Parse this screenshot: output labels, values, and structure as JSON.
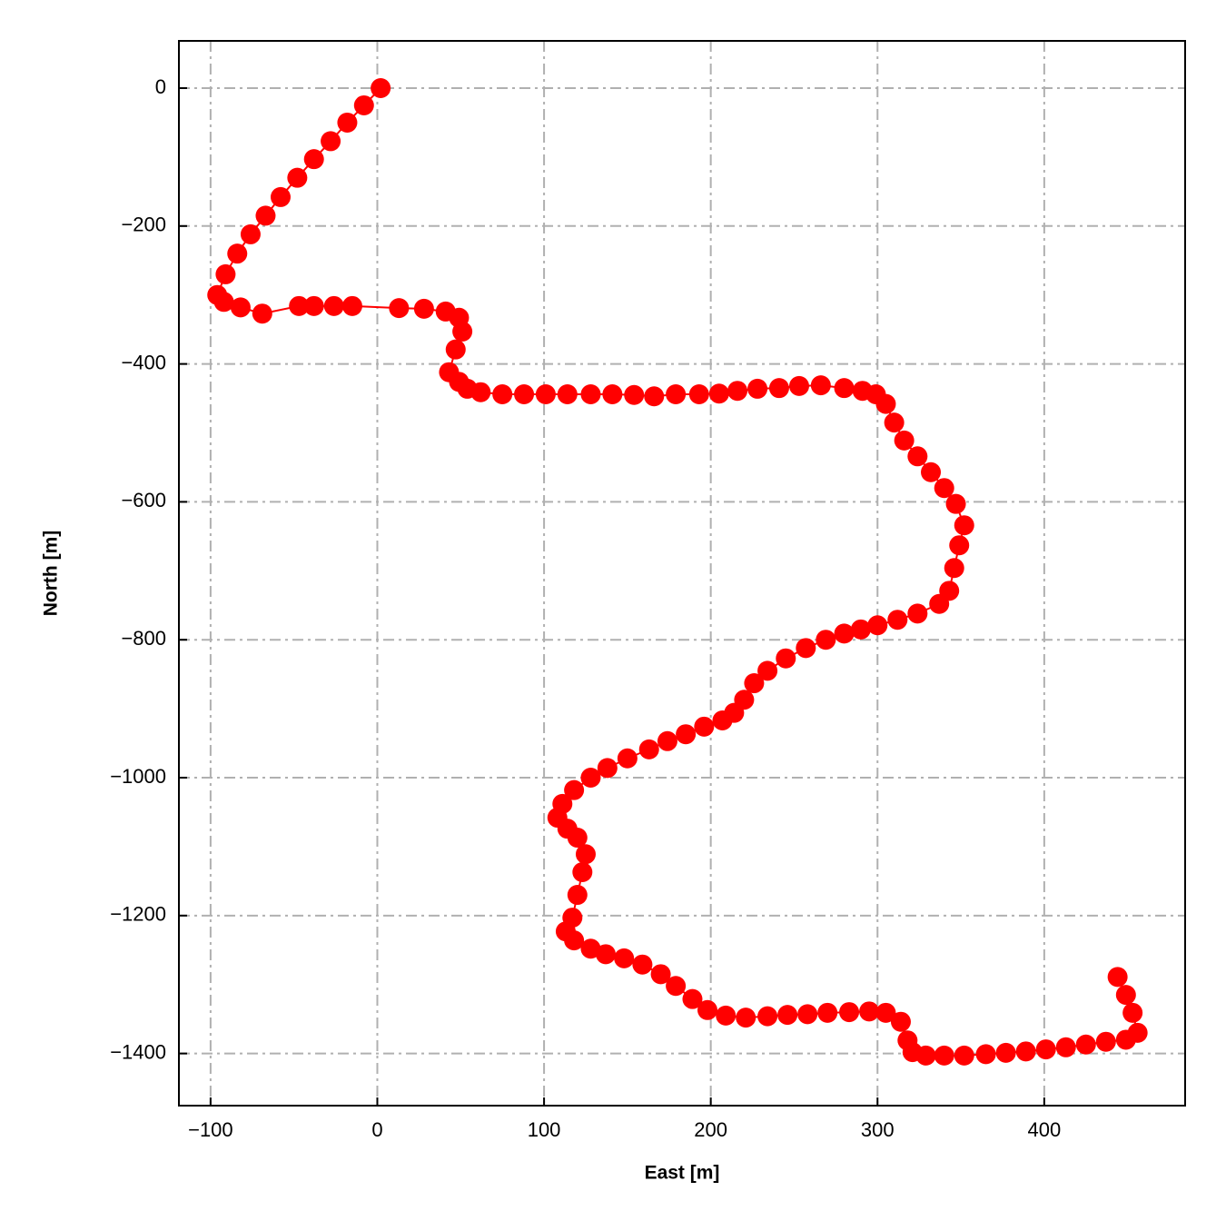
{
  "chart_data": {
    "type": "line",
    "xlabel": "East [m]",
    "ylabel": "North [m]",
    "xlim": [
      -119,
      484.5
    ],
    "ylim": [
      -1475.6,
      68.5
    ],
    "xticks": [
      {
        "value": -100,
        "label": "−100"
      },
      0,
      100,
      200,
      300,
      400
    ],
    "yticks": [
      0,
      {
        "value": -200,
        "label": "−200"
      },
      {
        "value": -400,
        "label": "−400"
      },
      {
        "value": -600,
        "label": "−600"
      },
      {
        "value": -800,
        "label": "−800"
      },
      {
        "value": -1000,
        "label": "−1000"
      },
      {
        "value": -1200,
        "label": "−1200"
      },
      {
        "value": -1400,
        "label": "−1400"
      }
    ],
    "grid": true,
    "x": [
      2,
      -8,
      -18,
      -28,
      -38,
      -48,
      -58,
      -67,
      -76,
      -84,
      -91,
      -96,
      -92,
      -82,
      -69,
      -47,
      -38,
      -26,
      -15,
      13,
      28,
      41,
      49,
      51,
      47,
      43,
      49,
      54,
      62,
      75,
      88,
      101,
      114,
      128,
      141,
      154,
      166,
      179,
      193,
      205,
      216,
      228,
      241,
      253,
      266,
      280,
      291,
      299,
      305,
      310,
      316,
      324,
      332,
      340,
      347,
      352,
      349,
      346,
      343,
      337,
      324,
      312,
      300,
      290,
      280,
      269,
      257,
      245,
      234,
      226,
      220,
      214,
      207,
      196,
      185,
      174,
      163,
      150,
      138,
      128,
      118,
      111,
      108,
      114,
      120,
      125,
      123,
      120,
      117,
      113,
      118,
      128,
      137,
      148,
      159,
      170,
      179,
      189,
      198,
      209,
      221,
      234,
      246,
      258,
      270,
      283,
      295,
      305,
      314,
      318,
      321,
      329,
      340,
      352,
      365,
      377,
      389,
      401,
      413,
      425,
      437,
      449,
      456,
      453,
      449,
      444
    ],
    "series": [
      {
        "color": "#ff0000",
        "values": [
          0,
          -25,
          -50,
          -77,
          -103,
          -130,
          -158,
          -185,
          -212,
          -240,
          -270,
          -300,
          -310,
          -318,
          -327,
          -316,
          -316,
          -316,
          -316,
          -319,
          -320,
          -324,
          -333,
          -353,
          -379,
          -412,
          -426,
          -436,
          -441,
          -444,
          -444,
          -444,
          -444,
          -444,
          -444,
          -445,
          -447,
          -444,
          -444,
          -443,
          -439,
          -436,
          -435,
          -432,
          -431,
          -435,
          -439,
          -444,
          -458,
          -485,
          -511,
          -534,
          -557,
          -580,
          -603,
          -634,
          -663,
          -696,
          -729,
          -748,
          -762,
          -771,
          -779,
          -785,
          -791,
          -800,
          -812,
          -827,
          -845,
          -863,
          -887,
          -906,
          -917,
          -926,
          -937,
          -947,
          -959,
          -972,
          -986,
          -1000,
          -1018,
          -1038,
          -1058,
          -1074,
          -1087,
          -1111,
          -1137,
          -1170,
          -1203,
          -1223,
          -1236,
          -1248,
          -1256,
          -1262,
          -1271,
          -1285,
          -1302,
          -1321,
          -1337,
          -1345,
          -1348,
          -1346,
          -1344,
          -1343,
          -1341,
          -1340,
          -1339,
          -1341,
          -1354,
          -1381,
          -1398,
          -1403,
          -1403,
          -1403,
          -1401,
          -1399,
          -1397,
          -1394,
          -1391,
          -1387,
          -1383,
          -1380,
          -1370,
          -1341,
          -1315,
          -1289
        ]
      }
    ]
  }
}
